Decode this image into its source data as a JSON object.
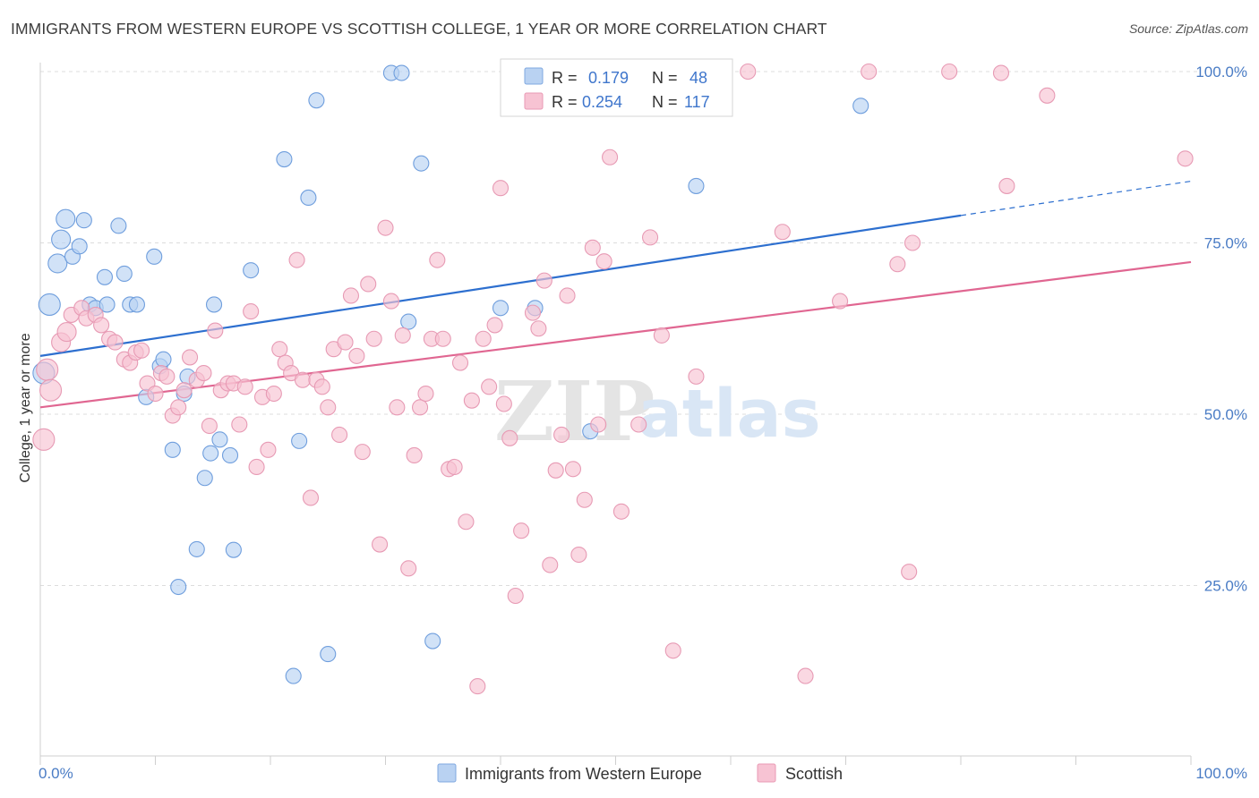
{
  "title": "IMMIGRANTS FROM WESTERN EUROPE VS SCOTTISH COLLEGE, 1 YEAR OR MORE CORRELATION CHART",
  "source": "Source: ZipAtlas.com",
  "watermark": {
    "zip": "ZIP",
    "atlas": "atlas"
  },
  "colors": {
    "blue": "#4a86d8",
    "blue_fill": "#b9d2f2",
    "pink": "#e0709a",
    "pink_fill": "#f7c3d3",
    "axis_text": "#4a7cc5"
  },
  "legend": {
    "rows": [
      {
        "r_label": "R =",
        "r_value": "0.179",
        "n_label": "N =",
        "n_value": "48"
      },
      {
        "r_label": "R =",
        "r_value": "0.254",
        "n_label": "N =",
        "n_value": "117"
      }
    ]
  },
  "bottom_legend": [
    "Immigrants from Western Europe",
    "Scottish"
  ],
  "chart_data": {
    "type": "scatter",
    "title": "IMMIGRANTS FROM WESTERN EUROPE VS SCOTTISH COLLEGE, 1 YEAR OR MORE CORRELATION CHART",
    "xlabel": "",
    "ylabel": "College, 1 year or more",
    "xlim": [
      0,
      100
    ],
    "ylim": [
      0,
      105
    ],
    "x_tick_labels": [
      "0.0%",
      "100.0%"
    ],
    "y_tick_labels": [
      "25.0%",
      "50.0%",
      "75.0%",
      "100.0%"
    ],
    "y_tick_values": [
      25,
      50,
      75,
      100
    ],
    "grid": true,
    "legend_position": "top-center",
    "series": [
      {
        "name": "Immigrants from Western Europe",
        "R": 0.179,
        "N": 48,
        "trend": {
          "x0": 0,
          "y0": 58.5,
          "x1": 80,
          "y1": 79.0,
          "dashed_to_x": 100,
          "dashed_to_y": 84.0
        },
        "points": [
          [
            0.3,
            56.0
          ],
          [
            0.8,
            66.0
          ],
          [
            1.5,
            72.0
          ],
          [
            1.8,
            75.5
          ],
          [
            2.2,
            78.5
          ],
          [
            2.8,
            73.0
          ],
          [
            3.4,
            74.5
          ],
          [
            3.8,
            78.3
          ],
          [
            4.3,
            66.0
          ],
          [
            4.8,
            65.5
          ],
          [
            5.6,
            70.0
          ],
          [
            5.8,
            66.0
          ],
          [
            6.8,
            77.5
          ],
          [
            7.3,
            70.5
          ],
          [
            7.8,
            66.0
          ],
          [
            8.4,
            66.0
          ],
          [
            9.2,
            52.5
          ],
          [
            9.9,
            73.0
          ],
          [
            10.4,
            57.0
          ],
          [
            10.7,
            58.0
          ],
          [
            11.5,
            44.8
          ],
          [
            12.0,
            24.8
          ],
          [
            12.5,
            53.0
          ],
          [
            12.8,
            55.5
          ],
          [
            13.6,
            30.3
          ],
          [
            14.3,
            40.7
          ],
          [
            14.8,
            44.3
          ],
          [
            15.1,
            66.0
          ],
          [
            15.6,
            46.3
          ],
          [
            16.5,
            44.0
          ],
          [
            16.8,
            30.2
          ],
          [
            18.3,
            71.0
          ],
          [
            21.2,
            87.2
          ],
          [
            22.0,
            11.8
          ],
          [
            22.5,
            46.1
          ],
          [
            23.3,
            81.6
          ],
          [
            24.0,
            95.8
          ],
          [
            25.0,
            15.0
          ],
          [
            30.5,
            99.8
          ],
          [
            31.4,
            99.8
          ],
          [
            32.0,
            63.5
          ],
          [
            33.1,
            86.6
          ],
          [
            34.1,
            16.9
          ],
          [
            40.0,
            65.5
          ],
          [
            43.0,
            65.5
          ],
          [
            47.8,
            47.5
          ],
          [
            57.0,
            83.3
          ],
          [
            71.3,
            95.0
          ]
        ]
      },
      {
        "name": "Scottish",
        "R": 0.254,
        "N": 117,
        "trend": {
          "x0": 0,
          "y0": 51.0,
          "x1": 100,
          "y1": 72.2
        },
        "points": [
          [
            0.3,
            46.3
          ],
          [
            0.6,
            56.5
          ],
          [
            0.9,
            53.5
          ],
          [
            1.8,
            60.5
          ],
          [
            2.3,
            62.0
          ],
          [
            2.7,
            64.5
          ],
          [
            3.6,
            65.5
          ],
          [
            4.0,
            64.0
          ],
          [
            4.8,
            64.5
          ],
          [
            5.3,
            63.0
          ],
          [
            6.0,
            61.0
          ],
          [
            6.5,
            60.5
          ],
          [
            7.3,
            58.0
          ],
          [
            7.8,
            57.5
          ],
          [
            8.3,
            59.0
          ],
          [
            8.8,
            59.3
          ],
          [
            9.3,
            54.5
          ],
          [
            10.0,
            53.0
          ],
          [
            10.5,
            56.0
          ],
          [
            11.0,
            55.5
          ],
          [
            11.5,
            49.8
          ],
          [
            12.0,
            51.0
          ],
          [
            12.5,
            53.5
          ],
          [
            13.0,
            58.3
          ],
          [
            13.6,
            55.0
          ],
          [
            14.2,
            56.0
          ],
          [
            14.7,
            48.3
          ],
          [
            15.2,
            62.2
          ],
          [
            15.7,
            53.5
          ],
          [
            16.3,
            54.5
          ],
          [
            16.8,
            54.5
          ],
          [
            17.3,
            48.5
          ],
          [
            17.8,
            54.0
          ],
          [
            18.3,
            65.0
          ],
          [
            18.8,
            42.3
          ],
          [
            19.3,
            52.5
          ],
          [
            19.8,
            44.8
          ],
          [
            20.3,
            53.0
          ],
          [
            20.8,
            59.5
          ],
          [
            21.3,
            57.5
          ],
          [
            21.8,
            56.0
          ],
          [
            22.3,
            72.5
          ],
          [
            22.8,
            55.0
          ],
          [
            23.5,
            37.8
          ],
          [
            24.0,
            55.0
          ],
          [
            24.5,
            54.0
          ],
          [
            25.0,
            51.0
          ],
          [
            25.5,
            59.5
          ],
          [
            26.0,
            47.0
          ],
          [
            26.5,
            60.5
          ],
          [
            27.0,
            67.3
          ],
          [
            27.5,
            58.5
          ],
          [
            28.0,
            44.5
          ],
          [
            28.5,
            69.0
          ],
          [
            29.0,
            61.0
          ],
          [
            29.5,
            31.0
          ],
          [
            30.0,
            77.2
          ],
          [
            30.5,
            66.5
          ],
          [
            31.0,
            51.0
          ],
          [
            31.5,
            61.5
          ],
          [
            32.0,
            27.5
          ],
          [
            32.5,
            44.0
          ],
          [
            33.0,
            51.0
          ],
          [
            33.5,
            53.0
          ],
          [
            34.0,
            61.0
          ],
          [
            34.5,
            72.5
          ],
          [
            35.0,
            61.0
          ],
          [
            35.5,
            42.0
          ],
          [
            36.0,
            42.3
          ],
          [
            36.5,
            57.5
          ],
          [
            37.0,
            34.3
          ],
          [
            37.5,
            52.0
          ],
          [
            38.0,
            10.3
          ],
          [
            38.5,
            61.0
          ],
          [
            39.0,
            54.0
          ],
          [
            39.5,
            63.0
          ],
          [
            40.0,
            83.0
          ],
          [
            40.3,
            51.5
          ],
          [
            40.8,
            46.5
          ],
          [
            41.3,
            23.5
          ],
          [
            41.8,
            33.0
          ],
          [
            42.3,
            94.7
          ],
          [
            42.8,
            64.8
          ],
          [
            43.3,
            62.5
          ],
          [
            43.8,
            69.5
          ],
          [
            44.3,
            28.0
          ],
          [
            44.8,
            41.8
          ],
          [
            45.3,
            47.0
          ],
          [
            45.8,
            67.3
          ],
          [
            46.3,
            42.0
          ],
          [
            46.8,
            29.5
          ],
          [
            47.3,
            37.5
          ],
          [
            48.0,
            74.3
          ],
          [
            48.5,
            48.5
          ],
          [
            49.0,
            72.3
          ],
          [
            49.5,
            87.5
          ],
          [
            50.5,
            35.8
          ],
          [
            51.0,
            99.5
          ],
          [
            52.0,
            48.5
          ],
          [
            53.0,
            75.8
          ],
          [
            54.0,
            61.5
          ],
          [
            55.0,
            15.5
          ],
          [
            57.0,
            55.5
          ],
          [
            59.0,
            99.8
          ],
          [
            61.5,
            100.0
          ],
          [
            64.5,
            76.6
          ],
          [
            66.5,
            11.8
          ],
          [
            69.5,
            66.5
          ],
          [
            72.0,
            100.0
          ],
          [
            74.5,
            71.9
          ],
          [
            75.5,
            27.0
          ],
          [
            75.8,
            75.0
          ],
          [
            79.0,
            100.0
          ],
          [
            83.5,
            99.8
          ],
          [
            84.0,
            83.3
          ],
          [
            87.5,
            96.5
          ],
          [
            99.5,
            87.3
          ]
        ]
      }
    ]
  }
}
